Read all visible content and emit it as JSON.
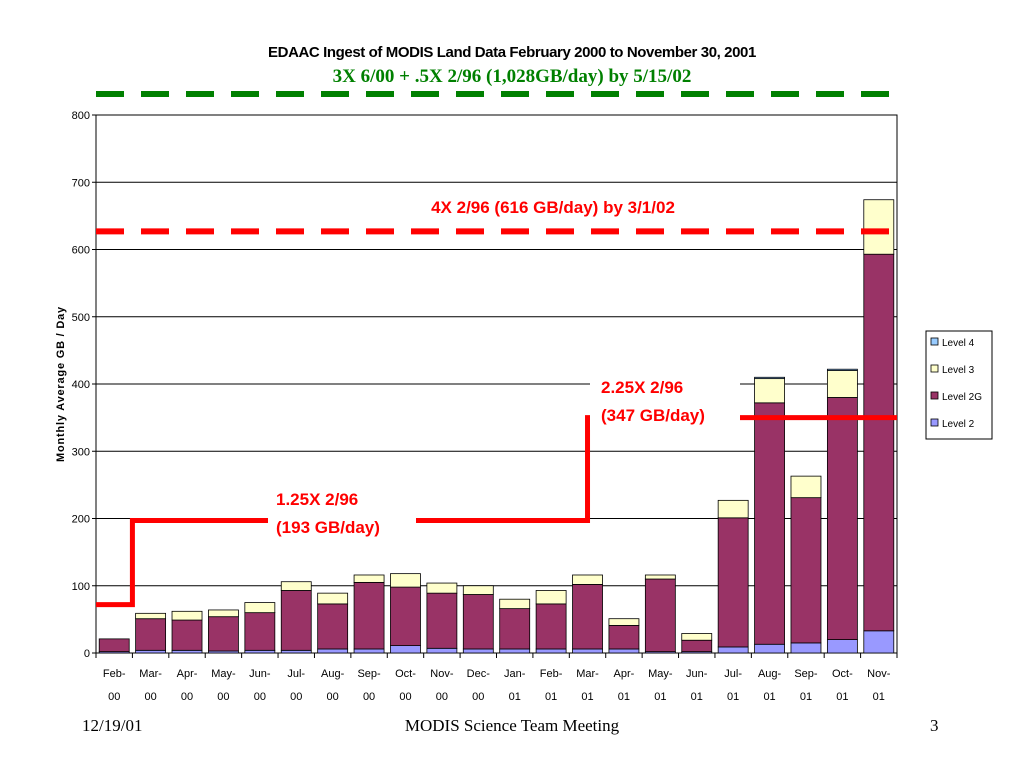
{
  "footer": {
    "date": "12/19/01",
    "meeting": "MODIS Science Team Meeting",
    "page": "3"
  },
  "colors": {
    "level4": "#99ccff",
    "level3": "#ffffcc",
    "level2g": "#993366",
    "level2": "#9999ff",
    "green_target": "#008000",
    "red_target": "#ff0000"
  },
  "chart_data": {
    "type": "bar",
    "stacked": true,
    "title": "EDAAC Ingest of MODIS Land Data February 2000 to November 30, 2001",
    "subtitle": "3X 6/00 +  .5X 2/96 (1,028GB/day) by 5/15/02",
    "ylabel": "Monthly Average GB / Day",
    "ylim": [
      0,
      800
    ],
    "yticks": [
      0,
      100,
      200,
      300,
      400,
      500,
      600,
      700,
      800
    ],
    "grid": true,
    "legend_position": "right",
    "categories": [
      [
        "Feb-",
        "00"
      ],
      [
        "Mar-",
        "00"
      ],
      [
        "Apr-",
        "00"
      ],
      [
        "May-",
        "00"
      ],
      [
        "Jun-",
        "00"
      ],
      [
        "Jul-",
        "00"
      ],
      [
        "Aug-",
        "00"
      ],
      [
        "Sep-",
        "00"
      ],
      [
        "Oct-",
        "00"
      ],
      [
        "Nov-",
        "00"
      ],
      [
        "Dec-",
        "00"
      ],
      [
        "Jan-",
        "01"
      ],
      [
        "Feb-",
        "01"
      ],
      [
        "Mar-",
        "01"
      ],
      [
        "Apr-",
        "01"
      ],
      [
        "May-",
        "01"
      ],
      [
        "Jun-",
        "01"
      ],
      [
        "Jul-",
        "01"
      ],
      [
        "Aug-",
        "01"
      ],
      [
        "Sep-",
        "01"
      ],
      [
        "Oct-",
        "01"
      ],
      [
        "Nov-",
        "01"
      ]
    ],
    "series": [
      {
        "name": "Level 4",
        "color_key": "level4",
        "values": [
          0,
          0,
          0,
          0,
          0,
          0,
          0,
          0,
          0,
          0,
          0,
          0,
          0,
          0,
          0,
          0,
          0,
          0,
          2,
          0,
          2,
          0
        ]
      },
      {
        "name": "Level 3",
        "color_key": "level3",
        "values": [
          0,
          8,
          13,
          10,
          15,
          13,
          16,
          11,
          20,
          15,
          13,
          14,
          20,
          14,
          10,
          6,
          10,
          26,
          36,
          32,
          40,
          81
        ]
      },
      {
        "name": "Level 2G",
        "color_key": "level2g",
        "values": [
          19,
          47,
          45,
          51,
          56,
          89,
          67,
          99,
          87,
          82,
          81,
          60,
          67,
          96,
          35,
          108,
          17,
          192,
          359,
          216,
          360,
          560
        ]
      },
      {
        "name": "Level 2",
        "color_key": "level2",
        "values": [
          2,
          4,
          4,
          3,
          4,
          4,
          6,
          6,
          11,
          7,
          6,
          6,
          6,
          6,
          6,
          2,
          2,
          9,
          13,
          15,
          20,
          33
        ]
      }
    ],
    "stack_order_bottom_to_top": [
      "Level 2",
      "Level 2G",
      "Level 3",
      "Level 4"
    ],
    "legend_order": [
      "Level 4",
      "Level 3",
      "Level 2G",
      "Level 2"
    ],
    "annotations": [
      {
        "id": "target-4x",
        "text": "4X 2/96 (616 GB/day) by 3/1/02",
        "value": 627
      },
      {
        "id": "target-125x",
        "lines": [
          "1.25X 2/96",
          "(193 GB/day)"
        ],
        "value": 197
      },
      {
        "id": "target-225x",
        "lines": [
          "2.25X 2/96",
          "(347 GB/day)"
        ],
        "value": 350
      }
    ],
    "step_line": [
      {
        "from_category": -0.5,
        "value": 72
      },
      {
        "from_category": 0.5,
        "value": 197
      },
      {
        "from_category": 13,
        "value": 350
      },
      {
        "to_category": 21.5
      }
    ]
  }
}
